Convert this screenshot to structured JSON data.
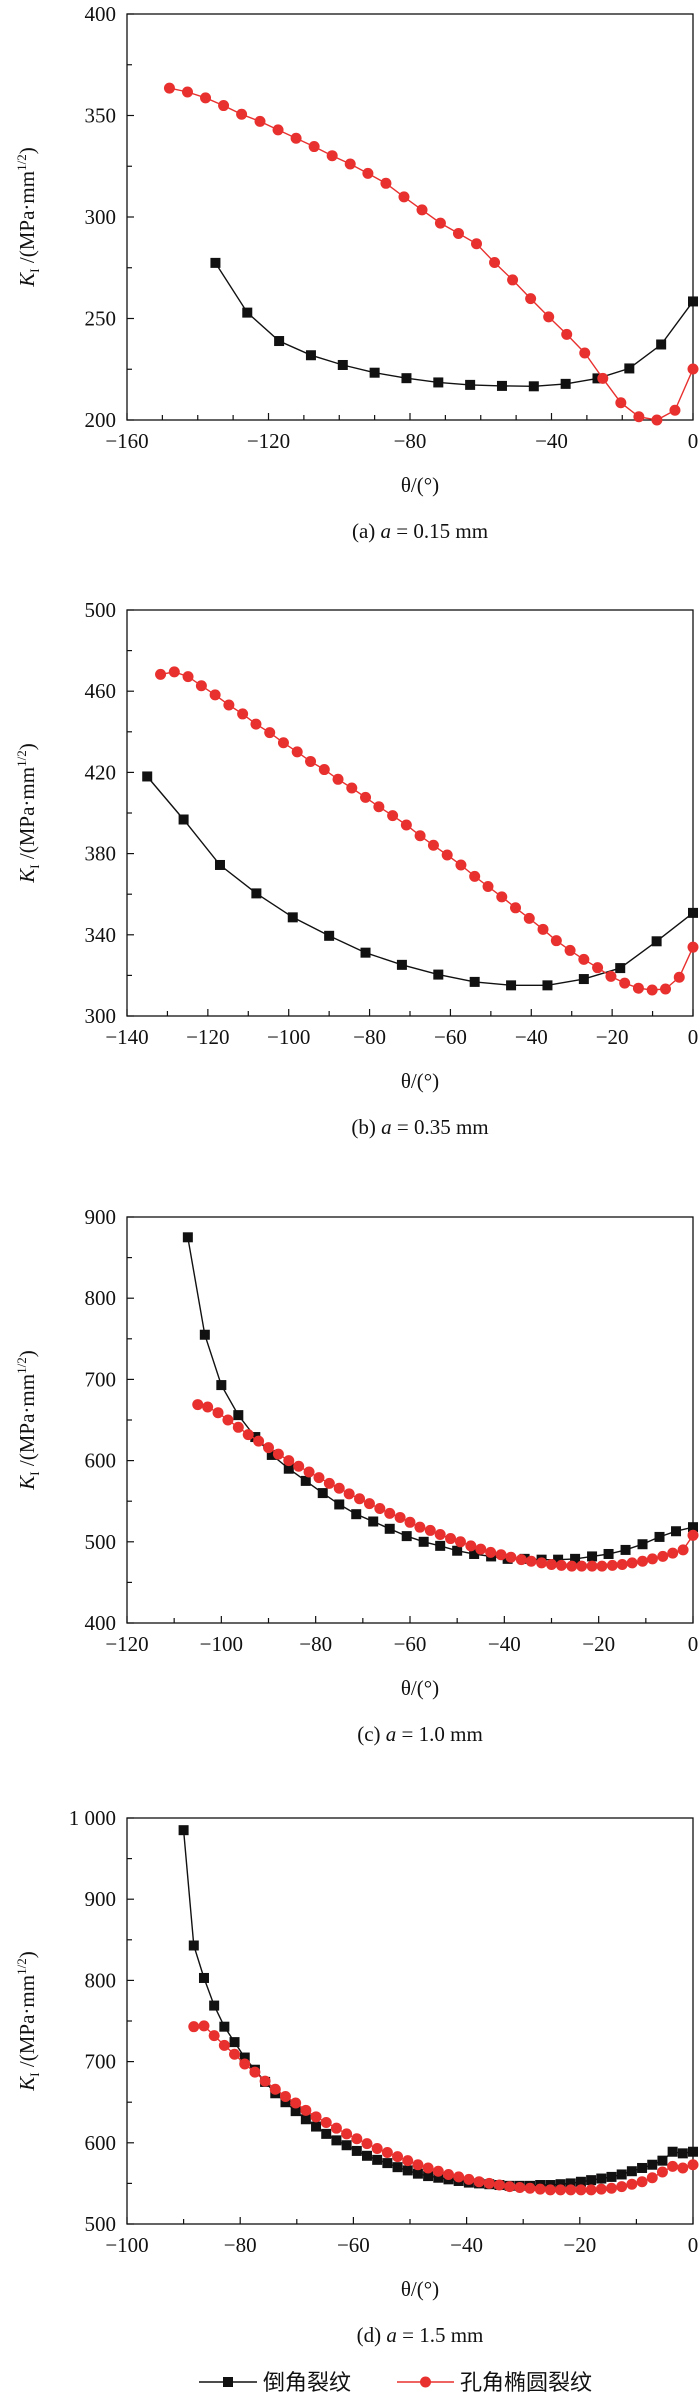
{
  "colors": {
    "chamfer": "#111111",
    "hole": "#e8312f",
    "axis": "#111111"
  },
  "legend": [
    {
      "label": "倒角裂纹",
      "marker": "square",
      "color": "#111111"
    },
    {
      "label": "孔角椭圆裂纹",
      "marker": "circle",
      "color": "#e8312f"
    }
  ],
  "chart_data": [
    {
      "type": "line",
      "panel": "a",
      "title": "(a) a = 0.15 mm",
      "title_parts": {
        "prefix": "(a) ",
        "var": "a",
        "suffix": " = 0.15 mm"
      },
      "xlabel": "θ/(°)",
      "ylabel": {
        "k": "K",
        "sub": "I",
        "unit": " /(MPa·mm",
        "sup": "1/2",
        "close": ")"
      },
      "xlim": [
        -160,
        0
      ],
      "ylim": [
        200,
        400
      ],
      "xticks": [
        -160,
        -120,
        -80,
        -40,
        0
      ],
      "xminor": 10,
      "yticks": [
        200,
        250,
        300,
        350,
        400
      ],
      "yminor": 25,
      "ytick_labels": [
        "200",
        "250",
        "300",
        "350",
        "400"
      ],
      "grid": false,
      "series": [
        {
          "name": "倒角裂纹",
          "marker": "square",
          "x": [
            -135,
            -126,
            -117,
            -108,
            -99,
            -90,
            -81,
            -72,
            -63,
            -54,
            -45,
            -36,
            -27,
            -18,
            -9,
            0
          ],
          "y": [
            277.4,
            252.9,
            238.9,
            231.9,
            227.1,
            223.3,
            220.6,
            218.5,
            217.3,
            216.8,
            216.6,
            217.8,
            220.5,
            225.4,
            237.2,
            258.4
          ]
        },
        {
          "name": "孔角椭圆裂纹",
          "marker": "circle",
          "x": [
            -148,
            -142.9,
            -137.8,
            -132.7,
            -127.6,
            -122.4,
            -117.3,
            -112.2,
            -107.1,
            -102,
            -96.9,
            -91.9,
            -86.8,
            -81.7,
            -76.6,
            -71.4,
            -66.3,
            -61.2,
            -56.1,
            -51,
            -45.9,
            -40.8,
            -35.7,
            -30.6,
            -25.5,
            -20.4,
            -15.3,
            -10.2,
            -5.1,
            0
          ],
          "y": [
            363.5,
            361.6,
            358.7,
            354.9,
            350.6,
            347.1,
            342.9,
            338.8,
            334.7,
            330.2,
            326.1,
            321.5,
            316.6,
            309.9,
            303.5,
            297,
            291.9,
            286.8,
            277.6,
            269,
            259.8,
            250.8,
            242.2,
            233,
            220.5,
            208.5,
            201.6,
            200,
            204.8,
            225.1
          ]
        }
      ]
    },
    {
      "type": "line",
      "panel": "b",
      "title": "(b) a = 0.35 mm",
      "title_parts": {
        "prefix": "(b) ",
        "var": "a",
        "suffix": " = 0.35 mm"
      },
      "xlabel": "θ/(°)",
      "ylabel": {
        "k": "K",
        "sub": "I",
        "unit": " /(MPa·mm",
        "sup": "1/2",
        "close": ")"
      },
      "xlim": [
        -140,
        0
      ],
      "ylim": [
        300,
        500
      ],
      "xticks": [
        -140,
        -120,
        -100,
        -80,
        -60,
        -40,
        -20,
        0
      ],
      "xminor": 10,
      "yticks": [
        300,
        340,
        380,
        420,
        460,
        500
      ],
      "yminor": 20,
      "ytick_labels": [
        "300",
        "340",
        "380",
        "420",
        "460",
        "500"
      ],
      "grid": false,
      "series": [
        {
          "name": "倒角裂纹",
          "marker": "square",
          "x": [
            -135,
            -126,
            -117,
            -108,
            -99,
            -90,
            -81,
            -72,
            -63,
            -54,
            -45,
            -36,
            -27,
            -18,
            -9,
            0
          ],
          "y": [
            418,
            396.8,
            374.4,
            360.4,
            348.6,
            339.5,
            331.2,
            325.2,
            320.4,
            316.8,
            315.1,
            315.1,
            318.2,
            323.6,
            336.8,
            350.8
          ]
        },
        {
          "name": "孔角椭圆裂纹",
          "marker": "circle",
          "x": [
            -131.7,
            -128.3,
            -124.9,
            -121.6,
            -118.2,
            -114.8,
            -111.4,
            -108.1,
            -104.7,
            -101.3,
            -97.9,
            -94.6,
            -91.2,
            -87.8,
            -84.4,
            -81,
            -77.7,
            -74.3,
            -70.9,
            -67.5,
            -64.2,
            -60.8,
            -57.4,
            -54,
            -50.7,
            -47.3,
            -43.9,
            -40.5,
            -37.1,
            -33.8,
            -30.4,
            -27,
            -23.6,
            -20.3,
            -16.9,
            -13.5,
            -10.1,
            -6.8,
            -3.4,
            0
          ],
          "y": [
            468.3,
            469.5,
            467.2,
            462.7,
            458.2,
            453.2,
            448.8,
            443.8,
            439.6,
            434.6,
            430.1,
            425.4,
            421.4,
            416.6,
            412.3,
            407.7,
            403.1,
            398.7,
            394.1,
            388.8,
            384.1,
            379.3,
            374.4,
            368.8,
            363.8,
            358.7,
            353.3,
            348.1,
            342.7,
            337.1,
            332.3,
            327.9,
            323.8,
            319.5,
            316.2,
            313.7,
            312.8,
            313.3,
            319.1,
            333.9
          ]
        }
      ]
    },
    {
      "type": "line",
      "panel": "c",
      "title": "(c) a = 1.0 mm",
      "title_parts": {
        "prefix": "(c) ",
        "var": "a",
        "suffix": " = 1.0 mm"
      },
      "xlabel": "θ/(°)",
      "ylabel": {
        "k": "K",
        "sub": "I",
        "unit": " /(MPa·mm",
        "sup": "1/2",
        "close": ")"
      },
      "xlim": [
        -120,
        0
      ],
      "ylim": [
        400,
        900
      ],
      "xticks": [
        -120,
        -100,
        -80,
        -60,
        -40,
        -20,
        0
      ],
      "xminor": 10,
      "yticks": [
        400,
        500,
        600,
        700,
        800,
        900
      ],
      "yminor": 50,
      "ytick_labels": [
        "400",
        "500",
        "600",
        "700",
        "800",
        "900"
      ],
      "grid": false,
      "series": [
        {
          "name": "倒角裂纹",
          "marker": "square",
          "x": [
            -107.1,
            -103.5,
            -100,
            -96.4,
            -92.8,
            -89.3,
            -85.7,
            -82.1,
            -78.5,
            -75,
            -71.4,
            -67.8,
            -64.3,
            -60.7,
            -57.1,
            -53.6,
            -50,
            -46.4,
            -42.8,
            -39.3,
            -35.7,
            -32.1,
            -28.6,
            -25,
            -21.4,
            -17.9,
            -14.3,
            -10.7,
            -7.1,
            -3.6,
            0
          ],
          "y": [
            875,
            755,
            693,
            656,
            629,
            607,
            590,
            575,
            560,
            546,
            534,
            525,
            516,
            507,
            500,
            495,
            489,
            485,
            482,
            479,
            479,
            478,
            478,
            479,
            482,
            485,
            490,
            497,
            506,
            513,
            518
          ]
        },
        {
          "name": "孔角椭圆裂纹",
          "marker": "circle",
          "x": [
            -105,
            -102.9,
            -100.7,
            -98.6,
            -96.4,
            -94.3,
            -92.1,
            -90,
            -87.9,
            -85.7,
            -83.6,
            -81.4,
            -79.3,
            -77.1,
            -75,
            -72.9,
            -70.7,
            -68.6,
            -66.4,
            -64.3,
            -62.1,
            -60,
            -57.9,
            -55.7,
            -53.6,
            -51.4,
            -49.3,
            -47.1,
            -45,
            -42.9,
            -40.7,
            -38.6,
            -36.4,
            -34.3,
            -32.1,
            -30,
            -27.9,
            -25.7,
            -23.6,
            -21.4,
            -19.3,
            -17.1,
            -15,
            -12.9,
            -10.7,
            -8.6,
            -6.4,
            -4.3,
            -2.1,
            0
          ],
          "y": [
            669,
            666,
            659,
            650,
            641,
            632,
            624,
            616,
            608,
            600,
            593,
            586,
            579,
            572,
            566,
            559,
            553,
            547,
            541,
            535,
            530,
            524,
            518,
            514,
            509,
            504,
            500,
            495,
            491,
            487,
            484,
            481,
            478,
            476,
            474,
            472,
            471,
            470,
            470,
            470,
            470,
            471,
            472,
            474,
            476,
            479,
            482,
            486,
            490,
            508
          ]
        }
      ]
    },
    {
      "type": "line",
      "panel": "d",
      "title": "(d) a = 1.5 mm",
      "title_parts": {
        "prefix": "(d) ",
        "var": "a",
        "suffix": " = 1.5 mm"
      },
      "xlabel": "θ/(°)",
      "ylabel": {
        "k": "K",
        "sub": "I",
        "unit": " /(MPa·mm",
        "sup": "1/2",
        "close": ")"
      },
      "xlim": [
        -100,
        0
      ],
      "ylim": [
        500,
        1000
      ],
      "xticks": [
        -100,
        -80,
        -60,
        -40,
        -20,
        0
      ],
      "xminor": 10,
      "yticks": [
        500,
        600,
        700,
        800,
        900,
        1000
      ],
      "yminor": 50,
      "ytick_labels": [
        "500",
        "600",
        "700",
        "800",
        "900",
        "1 000"
      ],
      "grid": false,
      "legend_position": "bottom",
      "series": [
        {
          "name": "倒角裂纹",
          "marker": "square",
          "x": [
            -90,
            -88.2,
            -86.4,
            -84.6,
            -82.8,
            -81,
            -79.2,
            -77.4,
            -75.6,
            -73.8,
            -72,
            -70.2,
            -68.4,
            -66.6,
            -64.8,
            -63,
            -61.2,
            -59.4,
            -57.6,
            -55.8,
            -54,
            -52.2,
            -50.4,
            -48.6,
            -46.8,
            -45,
            -43.2,
            -41.4,
            -39.6,
            -37.8,
            -36,
            -34.2,
            -32.4,
            -30.6,
            -28.8,
            -27,
            -25.2,
            -23.4,
            -21.6,
            -19.8,
            -18,
            -16.2,
            -14.4,
            -12.6,
            -10.8,
            -9,
            -7.2,
            -5.4,
            -3.6,
            -1.8,
            0
          ],
          "y": [
            985,
            843,
            803,
            769,
            743,
            724,
            705,
            690,
            675,
            661,
            650,
            639,
            629,
            620,
            611,
            603,
            597,
            590,
            584,
            579,
            575,
            570,
            566,
            562,
            559,
            557,
            555,
            553,
            551,
            550,
            549,
            548,
            547,
            547,
            547,
            548,
            548,
            549,
            550,
            552,
            554,
            556,
            558,
            561,
            565,
            569,
            573,
            578,
            589,
            587,
            589
          ]
        },
        {
          "name": "孔角椭圆裂纹",
          "marker": "circle",
          "x": [
            -88.2,
            -86.4,
            -84.6,
            -82.8,
            -81,
            -79.2,
            -77.4,
            -75.6,
            -73.8,
            -72,
            -70.2,
            -68.4,
            -66.6,
            -64.8,
            -63,
            -61.2,
            -59.4,
            -57.6,
            -55.8,
            -54,
            -52.2,
            -50.4,
            -48.6,
            -46.8,
            -45,
            -43.2,
            -41.4,
            -39.6,
            -37.8,
            -36,
            -34.2,
            -32.4,
            -30.6,
            -28.8,
            -27,
            -25.2,
            -23.4,
            -21.6,
            -19.8,
            -18,
            -16.2,
            -14.4,
            -12.6,
            -10.8,
            -9,
            -7.2,
            -5.4,
            -3.6,
            -1.8,
            0
          ],
          "y": [
            743,
            744,
            732,
            720,
            709,
            697,
            687,
            676,
            666,
            657,
            649,
            640,
            632,
            625,
            618,
            611,
            605,
            599,
            593,
            588,
            583,
            578,
            573,
            569,
            565,
            561,
            558,
            555,
            552,
            550,
            548,
            546,
            545,
            544,
            543,
            542,
            542,
            542,
            542,
            542,
            543,
            544,
            546,
            549,
            552,
            557,
            564,
            571,
            569,
            573
          ]
        }
      ]
    }
  ]
}
